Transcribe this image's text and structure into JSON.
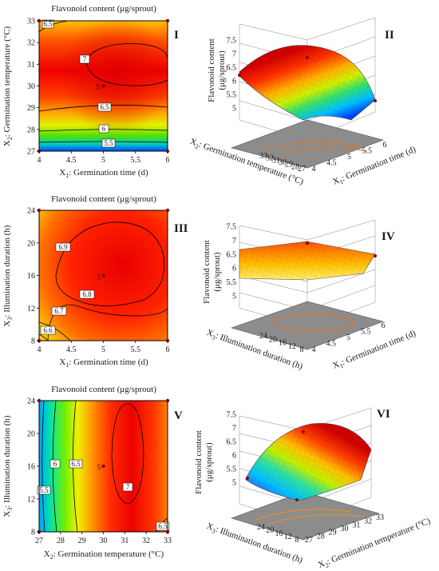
{
  "figure": {
    "panels": [
      {
        "id": "I",
        "kind": "contour",
        "title": "Flavonoid content (μg/sprout)",
        "xlabel_pre": "X",
        "xlabel_sub": "1",
        "xlabel_post": ": Germination time (d)",
        "ylabel_pre": "X",
        "ylabel_sub": "2",
        "ylabel_post": ": Germination temperature (°C)",
        "x_ticks": [
          "4",
          "4.5",
          "5",
          "5.5",
          "6"
        ],
        "y_ticks": [
          "27",
          "28",
          "29",
          "30",
          "31",
          "32",
          "33"
        ],
        "center_label": "5"
      },
      {
        "id": "II",
        "kind": "surface",
        "zlabel_line1": "Flavonoid content",
        "zlabel_line2": "(μg/sprout)",
        "z_ticks": [
          "5",
          "5.5",
          "6",
          "6.5",
          "7",
          "7.5"
        ],
        "left_pre": "X",
        "left_sub": "2",
        "left_post": ": Germination temperature (°C)",
        "left_ticks": [
          "33",
          "32",
          "31",
          "30",
          "29",
          "28",
          "27"
        ],
        "right_pre": "X",
        "right_sub": "1",
        "right_post": ": Germination time (d)",
        "right_ticks": [
          "4",
          "4.5",
          "5",
          "5.5",
          "6"
        ]
      },
      {
        "id": "III",
        "kind": "contour",
        "title": "Flavonoid content (μg/sprout)",
        "xlabel_pre": "X",
        "xlabel_sub": "1",
        "xlabel_post": ": Germination time (d)",
        "ylabel_pre": "X",
        "ylabel_sub": "3",
        "ylabel_post": ": Illumination duration (h)",
        "x_ticks": [
          "4",
          "4.5",
          "5",
          "5.5",
          "6"
        ],
        "y_ticks": [
          "8",
          "12",
          "16",
          "20",
          "24"
        ],
        "center_label": "5"
      },
      {
        "id": "IV",
        "kind": "surface",
        "zlabel_line1": "Flavonoid content",
        "zlabel_line2": "(μg/sprout)",
        "z_ticks": [
          "5",
          "5.5",
          "6",
          "6.5",
          "7",
          "7.5"
        ],
        "left_pre": "X",
        "left_sub": "3",
        "left_post": ": Illumination duration (h)",
        "left_ticks": [
          "24",
          "20",
          "16",
          "12",
          "8"
        ],
        "right_pre": "X",
        "right_sub": "1",
        "right_post": ": Germination time (d)",
        "right_ticks": [
          "4",
          "4.5",
          "5",
          "5.5",
          "6"
        ]
      },
      {
        "id": "V",
        "kind": "contour",
        "title": "Flavonoid content (μg/sprout)",
        "xlabel_pre": "X",
        "xlabel_sub": "2",
        "xlabel_post": ": Germination temperature (°C)",
        "ylabel_pre": "X",
        "ylabel_sub": "3",
        "ylabel_post": ": Illumination duration (h)",
        "x_ticks": [
          "27",
          "28",
          "29",
          "30",
          "31",
          "32",
          "33"
        ],
        "y_ticks": [
          "8",
          "12",
          "16",
          "20",
          "24"
        ],
        "center_label": "5"
      },
      {
        "id": "VI",
        "kind": "surface",
        "zlabel_line1": "Flavonoid content",
        "zlabel_line2": "(μg/sprout)",
        "z_ticks": [
          "5",
          "5.5",
          "6",
          "6.5",
          "7",
          "7.5"
        ],
        "left_pre": "X",
        "left_sub": "3",
        "left_post": ": Illumination duration (h)",
        "left_ticks": [
          "24",
          "20",
          "16",
          "12",
          "8"
        ],
        "right_pre": "X",
        "right_sub": "2",
        "right_post": ": Germination temperature (°C)",
        "right_ticks": [
          "27",
          "28",
          "29",
          "30",
          "31",
          "32",
          "33"
        ]
      }
    ]
  },
  "chart_data": [
    {
      "type": "heatmap",
      "panel": "I",
      "title": "Flavonoid content (μg/sprout)",
      "xlabel": "X1: Germination time (d)",
      "ylabel": "X2: Germination temperature (°C)",
      "xlim": [
        4,
        6
      ],
      "ylim": [
        27,
        33
      ],
      "contour_levels": [
        "5.5",
        "6",
        "6.5",
        "7",
        "6.5"
      ],
      "design_points": [
        [
          4,
          27
        ],
        [
          6,
          27
        ],
        [
          4,
          33
        ],
        [
          6,
          33
        ],
        [
          5,
          30
        ]
      ]
    },
    {
      "type": "surface",
      "panel": "II",
      "zlim": [
        5,
        7.5
      ],
      "xlabel": "X1: Germination time (d)",
      "ylabel": "X2: Germination temperature (°C)",
      "zlabel": "Flavonoid content (μg/sprout)"
    },
    {
      "type": "heatmap",
      "panel": "III",
      "title": "Flavonoid content (μg/sprout)",
      "xlabel": "X1: Germination time (d)",
      "ylabel": "X3: Illumination duration (h)",
      "xlim": [
        4,
        6
      ],
      "ylim": [
        8,
        24
      ],
      "contour_levels": [
        "6.6",
        "6.7",
        "6.8",
        "6.9"
      ],
      "design_points": [
        [
          4,
          8
        ],
        [
          6,
          8
        ],
        [
          4,
          24
        ],
        [
          6,
          24
        ],
        [
          5,
          16
        ]
      ]
    },
    {
      "type": "surface",
      "panel": "IV",
      "zlim": [
        5,
        7.5
      ],
      "xlabel": "X1: Germination time (d)",
      "ylabel": "X3: Illumination duration (h)",
      "zlabel": "Flavonoid content (μg/sprout)"
    },
    {
      "type": "heatmap",
      "panel": "V",
      "title": "Flavonoid content (μg/sprout)",
      "xlabel": "X2: Germination temperature (°C)",
      "ylabel": "X3: Illumination duration (h)",
      "xlim": [
        27,
        33
      ],
      "ylim": [
        8,
        24
      ],
      "contour_levels": [
        "5.5",
        "6",
        "6.5",
        "7",
        "6.5"
      ],
      "design_points": [
        [
          27,
          8
        ],
        [
          33,
          8
        ],
        [
          27,
          24
        ],
        [
          33,
          24
        ],
        [
          30,
          16
        ]
      ]
    },
    {
      "type": "surface",
      "panel": "VI",
      "zlim": [
        5,
        7.5
      ],
      "xlabel": "X2: Germination temperature (°C)",
      "ylabel": "X3: Illumination duration (h)",
      "zlabel": "Flavonoid content (μg/sprout)"
    }
  ]
}
